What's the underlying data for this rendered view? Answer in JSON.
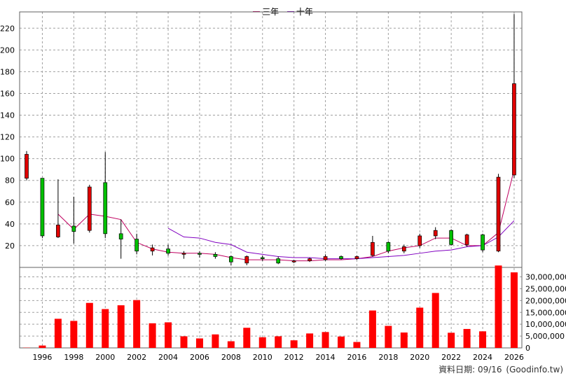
{
  "chart_data": {
    "type": "candlestick",
    "legend": [
      "三年",
      "十年"
    ],
    "colors": {
      "up": "#e00000",
      "down": "#00c000",
      "ma3": "#c00060",
      "ma10": "#8000c0",
      "grid": "#a0a0a0",
      "volume": "#ff0000"
    },
    "x_ticks": [
      "1996",
      "1998",
      "2000",
      "2002",
      "2004",
      "2006",
      "2008",
      "2010",
      "2012",
      "2014",
      "2016",
      "2018",
      "2020",
      "2022",
      "2024",
      "2026"
    ],
    "price_axis": {
      "ticks": [
        20,
        40,
        60,
        80,
        100,
        120,
        140,
        160,
        180,
        200,
        220
      ],
      "ylim": [
        0,
        235
      ],
      "side": "left"
    },
    "volume_axis": {
      "ticks": [
        "0",
        "5,000,000",
        "10,000,000",
        "15,000,000",
        "20,000,000",
        "25,000,000",
        "30,000,000"
      ],
      "ylim": [
        0,
        34000000
      ],
      "side": "right"
    },
    "candles": [
      {
        "year": 1995,
        "open": 82,
        "close": 104,
        "high": 107,
        "low": 80
      },
      {
        "year": 1996,
        "open": 82,
        "close": 29,
        "high": 82,
        "low": 27
      },
      {
        "year": 1997,
        "open": 28,
        "close": 39,
        "high": 81,
        "low": 27
      },
      {
        "year": 1998,
        "open": 38,
        "close": 33,
        "high": 65,
        "low": 22
      },
      {
        "year": 1999,
        "open": 34,
        "close": 74,
        "high": 76,
        "low": 32
      },
      {
        "year": 2000,
        "open": 78,
        "close": 31,
        "high": 106,
        "low": 27
      },
      {
        "year": 2001,
        "open": 31,
        "close": 26,
        "high": 44,
        "low": 8
      },
      {
        "year": 2002,
        "open": 26,
        "close": 15,
        "high": 31,
        "low": 12
      },
      {
        "year": 2003,
        "open": 15,
        "close": 18,
        "high": 21,
        "low": 11
      },
      {
        "year": 2004,
        "open": 17,
        "close": 13,
        "high": 21,
        "low": 11
      },
      {
        "year": 2005,
        "open": 12,
        "close": 13,
        "high": 15,
        "low": 8
      },
      {
        "year": 2006,
        "open": 13,
        "close": 12,
        "high": 15,
        "low": 9
      },
      {
        "year": 2007,
        "open": 12,
        "close": 10,
        "high": 14,
        "low": 8
      },
      {
        "year": 2008,
        "open": 10,
        "close": 5,
        "high": 11,
        "low": 2
      },
      {
        "year": 2009,
        "open": 4,
        "close": 10,
        "high": 11,
        "low": 2
      },
      {
        "year": 2010,
        "open": 9,
        "close": 8,
        "high": 11,
        "low": 6
      },
      {
        "year": 2011,
        "open": 8,
        "close": 4,
        "high": 10,
        "low": 3
      },
      {
        "year": 2012,
        "open": 5,
        "close": 6,
        "high": 7,
        "low": 4
      },
      {
        "year": 2013,
        "open": 6,
        "close": 8,
        "high": 9,
        "low": 5
      },
      {
        "year": 2014,
        "open": 7,
        "close": 10,
        "high": 12,
        "low": 6
      },
      {
        "year": 2015,
        "open": 10,
        "close": 8,
        "high": 11,
        "low": 7
      },
      {
        "year": 2016,
        "open": 8,
        "close": 10,
        "high": 11,
        "low": 7
      },
      {
        "year": 2017,
        "open": 11,
        "close": 23,
        "high": 29,
        "low": 10
      },
      {
        "year": 2018,
        "open": 23,
        "close": 15,
        "high": 24,
        "low": 13
      },
      {
        "year": 2019,
        "open": 15,
        "close": 19,
        "high": 21,
        "low": 13
      },
      {
        "year": 2020,
        "open": 20,
        "close": 29,
        "high": 31,
        "low": 18
      },
      {
        "year": 2021,
        "open": 29,
        "close": 34,
        "high": 37,
        "low": 26
      },
      {
        "year": 2022,
        "open": 34,
        "close": 21,
        "high": 35,
        "low": 20
      },
      {
        "year": 2023,
        "open": 21,
        "close": 30,
        "high": 31,
        "low": 19
      },
      {
        "year": 2024,
        "open": 30,
        "close": 16,
        "high": 31,
        "low": 14
      },
      {
        "year": 2025,
        "open": 15,
        "close": 83,
        "high": 86,
        "low": 14
      },
      {
        "year": 2026,
        "open": 85,
        "close": 169,
        "high": 233,
        "low": 82
      }
    ],
    "series": [
      {
        "name": "三年",
        "x": [
          1997,
          1998,
          1999,
          2000,
          2001,
          2002,
          2003,
          2004,
          2005,
          2006,
          2007,
          2008,
          2009,
          2010,
          2011,
          2012,
          2013,
          2014,
          2015,
          2016,
          2017,
          2018,
          2019,
          2020,
          2021,
          2022,
          2023,
          2024,
          2025,
          2026
        ],
        "values": [
          49,
          35,
          49,
          47,
          44,
          23,
          17,
          14,
          13,
          13,
          12,
          9,
          7,
          7,
          7,
          6,
          6,
          7,
          7,
          8,
          10,
          15,
          18,
          20,
          27,
          27,
          20,
          20,
          32,
          90
        ]
      },
      {
        "name": "十年",
        "x": [
          2004,
          2005,
          2006,
          2007,
          2008,
          2009,
          2010,
          2011,
          2012,
          2013,
          2014,
          2015,
          2016,
          2017,
          2018,
          2019,
          2020,
          2021,
          2022,
          2023,
          2024,
          2025,
          2026
        ],
        "values": [
          36,
          28,
          27,
          23,
          21,
          14,
          12,
          10,
          9,
          9,
          8,
          8,
          8,
          9,
          10,
          11,
          13,
          15,
          16,
          19,
          20,
          28,
          43
        ]
      }
    ],
    "volume": [
      {
        "year": 1995,
        "value": 100000
      },
      {
        "year": 1996,
        "value": 1000000
      },
      {
        "year": 1997,
        "value": 12300000
      },
      {
        "year": 1998,
        "value": 11400000
      },
      {
        "year": 1999,
        "value": 19000000
      },
      {
        "year": 2000,
        "value": 16400000
      },
      {
        "year": 2001,
        "value": 18000000
      },
      {
        "year": 2002,
        "value": 20200000
      },
      {
        "year": 2003,
        "value": 10400000
      },
      {
        "year": 2004,
        "value": 10800000
      },
      {
        "year": 2005,
        "value": 4900000
      },
      {
        "year": 2006,
        "value": 4000000
      },
      {
        "year": 2007,
        "value": 5700000
      },
      {
        "year": 2008,
        "value": 2800000
      },
      {
        "year": 2009,
        "value": 8500000
      },
      {
        "year": 2010,
        "value": 4500000
      },
      {
        "year": 2011,
        "value": 4900000
      },
      {
        "year": 2012,
        "value": 3200000
      },
      {
        "year": 2013,
        "value": 6100000
      },
      {
        "year": 2014,
        "value": 6700000
      },
      {
        "year": 2015,
        "value": 4800000
      },
      {
        "year": 2016,
        "value": 2500000
      },
      {
        "year": 2017,
        "value": 15800000
      },
      {
        "year": 2018,
        "value": 9300000
      },
      {
        "year": 2019,
        "value": 6500000
      },
      {
        "year": 2020,
        "value": 17000000
      },
      {
        "year": 2021,
        "value": 23200000
      },
      {
        "year": 2022,
        "value": 6400000
      },
      {
        "year": 2023,
        "value": 8000000
      },
      {
        "year": 2024,
        "value": 7000000
      },
      {
        "year": 2025,
        "value": 34800000
      },
      {
        "year": 2026,
        "value": 31900000
      }
    ]
  },
  "footer": {
    "label": "資料日期: 09/16",
    "source": "(Goodinfo.tw)"
  }
}
